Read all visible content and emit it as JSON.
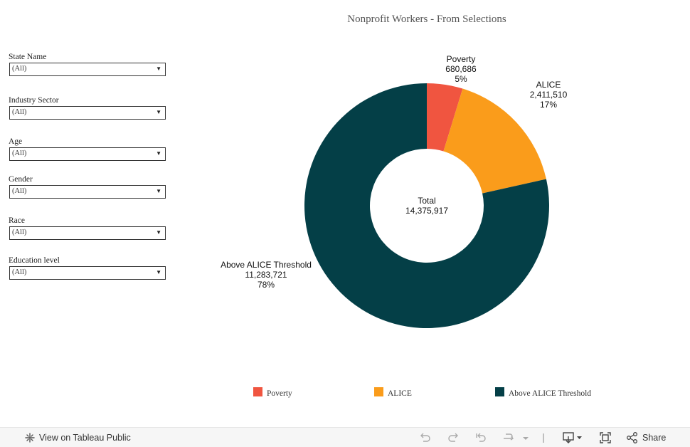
{
  "title": "Nonprofit Workers - From Selections",
  "filters": [
    {
      "label": "State Name",
      "value": "(All)"
    },
    {
      "label": "Industry Sector",
      "value": "(All)"
    },
    {
      "label": "Age",
      "value": "(All)"
    },
    {
      "label": "Gender",
      "value": "(All)"
    },
    {
      "label": "Race",
      "value": "(All)"
    },
    {
      "label": "Education level",
      "value": "(All)"
    }
  ],
  "chart_data": {
    "type": "pie",
    "subtype": "donut",
    "title": "Nonprofit Workers - From Selections",
    "center_label": "Total",
    "center_value": "14,375,917",
    "total": 14375917,
    "slices": [
      {
        "name": "Poverty",
        "value": 680686,
        "value_label": "680,686",
        "percent_label": "5%",
        "color": "#f05540"
      },
      {
        "name": "ALICE",
        "value": 2411510,
        "value_label": "2,411,510",
        "percent_label": "17%",
        "color": "#fa9c1b"
      },
      {
        "name": "Above ALICE Threshold",
        "value": 11283721,
        "value_label": "11,283,721",
        "percent_label": "78%",
        "color": "#043f47"
      }
    ],
    "legend_position": "bottom"
  },
  "legend": [
    "Poverty",
    "ALICE",
    "Above ALICE Threshold"
  ],
  "footer": {
    "view_label": "View on Tableau Public",
    "share_label": "Share"
  }
}
